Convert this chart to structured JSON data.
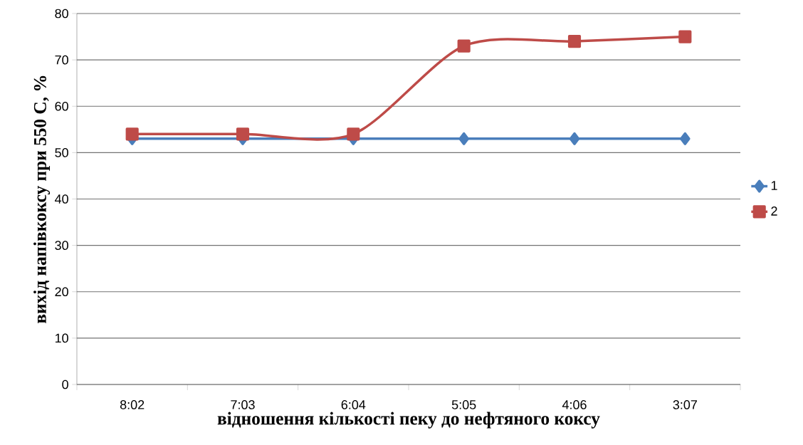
{
  "chart_data": {
    "type": "line",
    "xlabel": "відношення кількості пеку до нефтяного коксу",
    "ylabel": "вихід напівкоксу при 550 С, %",
    "categories": [
      "8:02",
      "7:03",
      "6:04",
      "5:05",
      "4:06",
      "3:07"
    ],
    "series": [
      {
        "name": "1",
        "color": "#4a7ebb",
        "marker": "diamond",
        "values": [
          53,
          53,
          53,
          53,
          53,
          53
        ]
      },
      {
        "name": "2",
        "color": "#be4b48",
        "marker": "square",
        "values": [
          54,
          54,
          54,
          73,
          74,
          75
        ]
      }
    ],
    "ylim": [
      0,
      80
    ],
    "yticks": [
      0,
      10,
      20,
      30,
      40,
      50,
      60,
      70,
      80
    ],
    "grid": "y",
    "legend": "right"
  }
}
